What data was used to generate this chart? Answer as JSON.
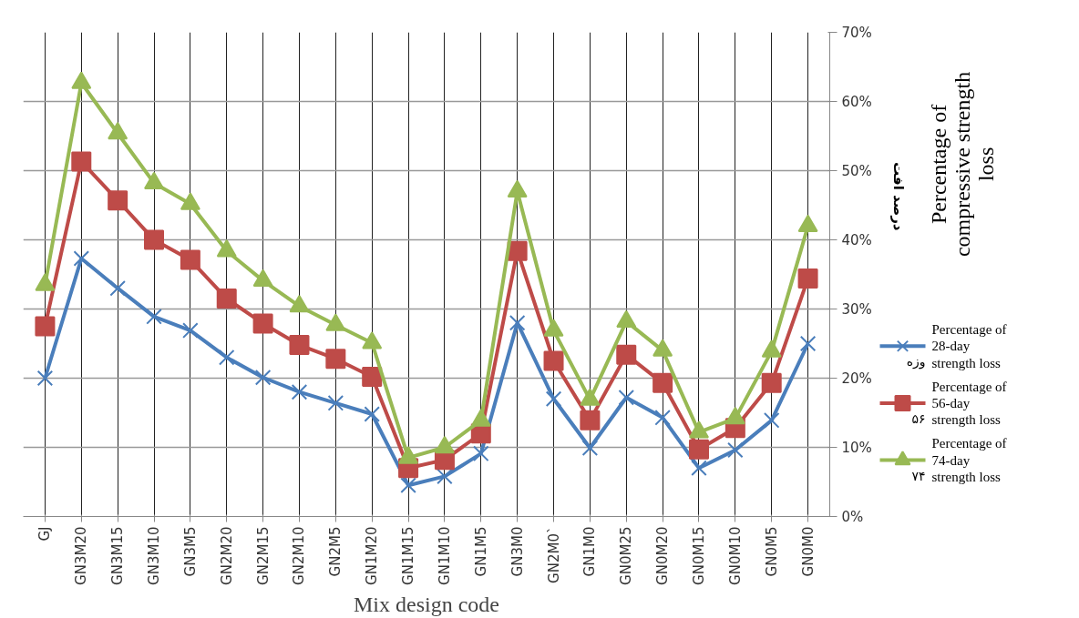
{
  "chart_data": {
    "type": "line",
    "xlabel": "Mix design code",
    "ylabel": "Percentage of compressive strength loss",
    "categories": [
      "GJ",
      "GN3M20",
      "GN3M15",
      "GN3M10",
      "GN3M5",
      "GN2M20",
      "GN2M15",
      "GN2M10",
      "GN2M5",
      "GN1M20",
      "GN1M15",
      "GN1M10",
      "GN1M5",
      "GN3M0",
      "GN2M0`",
      "GN1M0",
      "GN0M25",
      "GN0M20",
      "GN0M15",
      "GN0M10",
      "GN0M5",
      "GN0M0"
    ],
    "series": [
      {
        "name": "Percentage of 28-day strength loss",
        "color": "#4a7ebb",
        "marker": "cross",
        "values": [
          20,
          37.3,
          33,
          28.9,
          26.9,
          23,
          20.1,
          18,
          16.4,
          14.8,
          4.5,
          5.8,
          9.1,
          28,
          17,
          9.9,
          17.2,
          14.3,
          7,
          9.6,
          13.9,
          25
        ]
      },
      {
        "name": "Percentage of 56-day strength loss",
        "color": "#be4b48",
        "marker": "square",
        "values": [
          27.5,
          51.3,
          45.7,
          40,
          37.1,
          31.5,
          27.9,
          24.8,
          22.8,
          20.2,
          7,
          8.2,
          12,
          38.4,
          22.5,
          13.9,
          23.4,
          19.3,
          9.7,
          12.8,
          19.3,
          34.4
        ]
      },
      {
        "name": "Percentage of 74-day strength loss",
        "color": "#98b954",
        "marker": "triangle",
        "values": [
          33.5,
          62.7,
          55.4,
          48.2,
          45.2,
          38.4,
          34.1,
          30.4,
          27.7,
          25.1,
          8.5,
          10,
          13.9,
          47,
          26.9,
          16.9,
          28.2,
          24,
          12.2,
          14.2,
          23.9,
          42
        ]
      }
    ],
    "ylim": [
      0,
      70
    ],
    "yticks": [
      {
        "value": 0,
        "label": "0%"
      },
      {
        "value": 10,
        "label": "10%"
      },
      {
        "value": 20,
        "label": "20%"
      },
      {
        "value": 30,
        "label": "30%"
      },
      {
        "value": 40,
        "label": "40%"
      },
      {
        "value": 50,
        "label": "50%"
      },
      {
        "value": 60,
        "label": "60%"
      },
      {
        "value": 70,
        "label": "70%"
      }
    ],
    "grid": true,
    "legend": "right",
    "line_style": "solid",
    "annotations": [
      "درصد افت",
      "وزه",
      "۵۶",
      "۷۴"
    ]
  }
}
